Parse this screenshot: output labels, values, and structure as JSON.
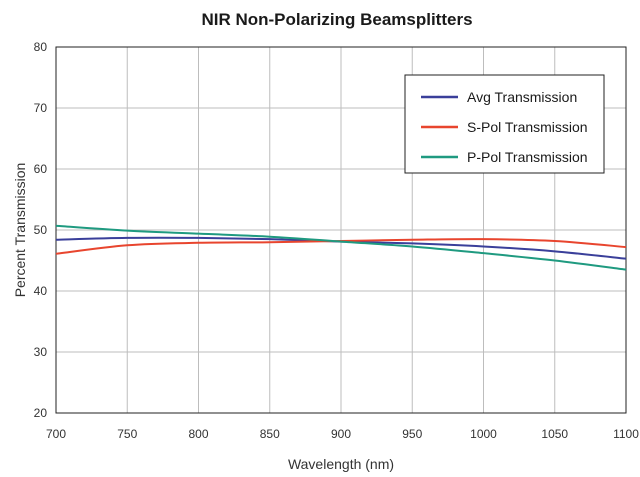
{
  "chart_data": {
    "type": "line",
    "title": "NIR Non-Polarizing Beamsplitters",
    "xlabel": "Wavelength (nm)",
    "ylabel": "Percent Transmission",
    "xlim": [
      700,
      1100
    ],
    "ylim": [
      20,
      80
    ],
    "xticks": [
      700,
      750,
      800,
      850,
      900,
      950,
      1000,
      1050,
      1100
    ],
    "yticks": [
      20,
      30,
      40,
      50,
      60,
      70,
      80
    ],
    "grid": true,
    "legend_position": "top-right",
    "x": [
      700,
      750,
      800,
      850,
      900,
      950,
      1000,
      1050,
      1100
    ],
    "series": [
      {
        "name": "Avg Transmission",
        "color": "#3a3f9a",
        "values": [
          48.4,
          48.7,
          48.7,
          48.5,
          48.1,
          47.8,
          47.3,
          46.5,
          45.3
        ]
      },
      {
        "name": "S-Pol Transmission",
        "color": "#e8452e",
        "values": [
          46.1,
          47.5,
          47.9,
          48.0,
          48.2,
          48.4,
          48.5,
          48.2,
          47.2
        ]
      },
      {
        "name": "P-Pol Transmission",
        "color": "#1f9a80",
        "values": [
          50.7,
          49.9,
          49.4,
          48.9,
          48.1,
          47.3,
          46.2,
          45.0,
          43.5
        ]
      }
    ]
  }
}
